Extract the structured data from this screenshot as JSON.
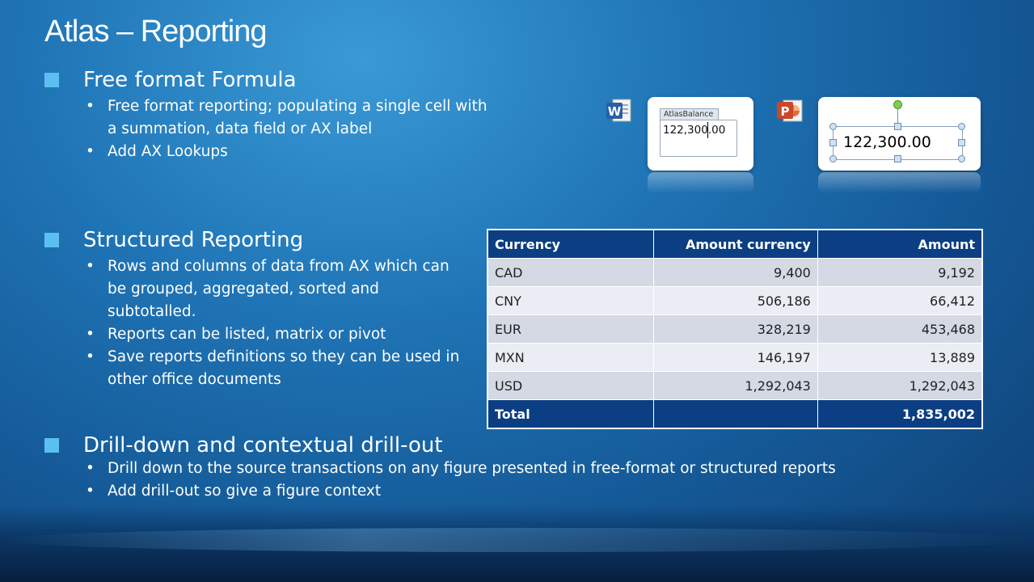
{
  "title": "Atlas – Reporting",
  "sections": [
    {
      "heading": "Free format Formula",
      "bullets": [
        "Free format reporting; populating a single cell with a summation, data field or AX label",
        "Add AX Lookups"
      ]
    },
    {
      "heading": "Structured Reporting",
      "bullets": [
        "Rows and columns of data from AX which can be grouped, aggregated, sorted and subtotalled.",
        "Reports can be listed, matrix or pivot",
        "Save reports definitions so they can be used in other office documents"
      ]
    },
    {
      "heading": "Drill-down and contextual drill-out",
      "bullets": [
        "Drill down to the source transactions on any figure presented in free-format or structured reports",
        "Add drill-out so give a figure context"
      ]
    }
  ],
  "table": {
    "headers": [
      "Currency",
      "Amount currency",
      "Amount"
    ],
    "rows": [
      [
        "CAD",
        "9,400",
        "9,192"
      ],
      [
        "CNY",
        "506,186",
        "66,412"
      ],
      [
        "EUR",
        "328,219",
        "453,468"
      ],
      [
        "MXN",
        "146,197",
        "13,889"
      ],
      [
        "USD",
        "1,292,043",
        "1,292,043"
      ]
    ],
    "total": [
      "Total",
      "",
      "1,835,002"
    ]
  },
  "word_sample": {
    "icon": "word-icon",
    "control_tag": "AtlasBalance",
    "value": "122,300.00"
  },
  "ppt_sample": {
    "icon": "powerpoint-icon",
    "value": "122,300.00"
  },
  "colors": {
    "bullet_square": "#5bc0f0",
    "table_header": "#0b3e82",
    "row_odd": "#d4d9e4",
    "row_even": "#eaedf3"
  }
}
